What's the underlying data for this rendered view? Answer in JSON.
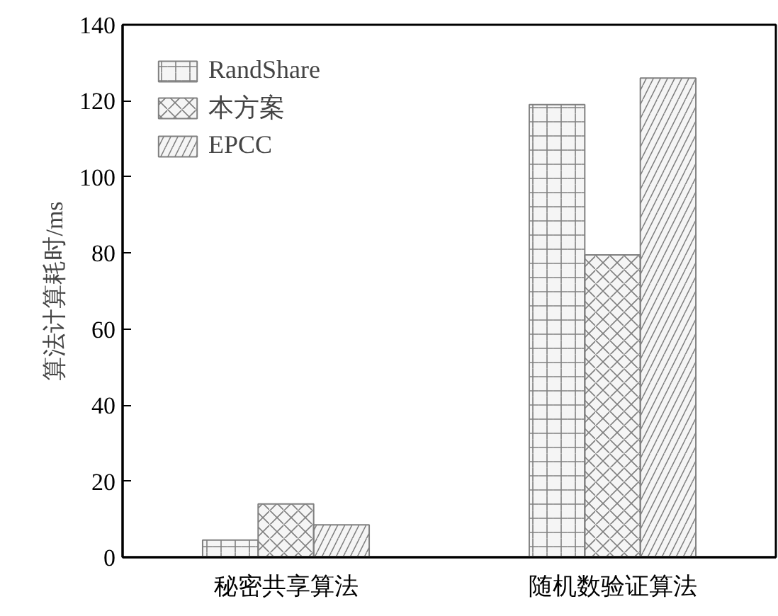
{
  "chart_data": {
    "type": "bar",
    "ylabel": "算法计算耗时/ms",
    "categories": [
      "秘密共享算法",
      "随机数验证算法"
    ],
    "series": [
      {
        "name": "RandShare",
        "color": "#808080",
        "values": [
          4.5,
          119
        ]
      },
      {
        "name": "本方案",
        "color": "#808080",
        "values": [
          14,
          79.5
        ]
      },
      {
        "name": "EPCC",
        "color": "#808080",
        "values": [
          8.5,
          126
        ]
      }
    ],
    "ylim": [
      0,
      140
    ],
    "yticks": [
      0,
      20,
      40,
      60,
      80,
      100,
      120,
      140
    ],
    "grid": false,
    "legend": "top left"
  }
}
